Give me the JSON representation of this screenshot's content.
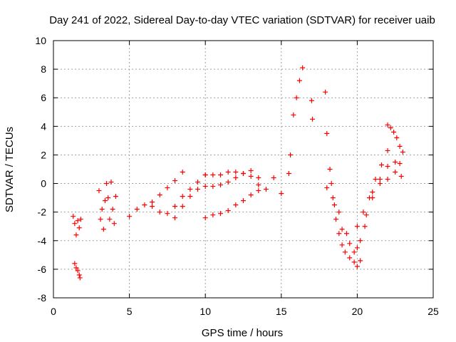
{
  "chart_data": {
    "type": "scatter",
    "title": "Day 241 of 2022, Sidereal Day-to-day VTEC variation (SDTVAR) for receiver uaib",
    "xlabel": "GPS time / hours",
    "ylabel": "SDTVAR / TECUs",
    "xlim": [
      0,
      25
    ],
    "ylim": [
      -8,
      10
    ],
    "xticks": [
      "0",
      "5",
      "10",
      "15",
      "20",
      "25"
    ],
    "yticks": [
      "-8",
      "-6",
      "-4",
      "-2",
      "0",
      "2",
      "4",
      "6",
      "8",
      "10"
    ],
    "grid": true,
    "marker": "+",
    "color": "#ff0000",
    "series": [
      {
        "name": "s1",
        "x": [
          1.3,
          1.4,
          1.5,
          1.6,
          1.7,
          1.8
        ],
        "y": [
          -2.3,
          -2.8,
          -3.6,
          -2.6,
          -3.1,
          -2.5
        ]
      },
      {
        "name": "s2",
        "x": [
          1.4,
          1.5,
          1.6,
          1.7,
          1.75
        ],
        "y": [
          -5.6,
          -5.9,
          -6.1,
          -6.4,
          -6.6
        ]
      },
      {
        "name": "s3",
        "x": [
          3.0,
          3.1,
          3.2,
          3.3,
          3.4
        ],
        "y": [
          -0.5,
          -2.5,
          -1.8,
          -3.2,
          -1.2
        ]
      },
      {
        "name": "s4",
        "x": [
          3.5,
          3.6,
          3.7,
          3.8,
          3.9,
          4.0,
          4.1
        ],
        "y": [
          0.0,
          -1.0,
          -2.5,
          0.1,
          -1.8,
          -2.8,
          -0.9
        ]
      },
      {
        "name": "s5",
        "x": [
          5.0,
          5.5,
          6.0,
          6.5,
          7.0,
          7.5,
          8.0,
          8.5
        ],
        "y": [
          -2.3,
          -1.8,
          -1.5,
          -1.3,
          -0.8,
          -0.3,
          0.2,
          0.8
        ]
      },
      {
        "name": "s6",
        "x": [
          6.5,
          7.0,
          7.5,
          8.0,
          8.5,
          9.0,
          9.5,
          10.0
        ],
        "y": [
          -1.6,
          -2.0,
          -2.1,
          -1.6,
          -0.9,
          -0.4,
          0.1,
          0.6
        ]
      },
      {
        "name": "s7",
        "x": [
          8.0,
          8.5,
          9.0,
          9.5,
          10.0,
          10.5,
          11.0,
          11.5,
          12.0,
          12.5,
          13.0
        ],
        "y": [
          -2.4,
          -1.6,
          -0.9,
          -0.4,
          -0.2,
          -0.2,
          -0.1,
          0.1,
          0.4,
          0.7,
          0.9
        ]
      },
      {
        "name": "s8",
        "x": [
          10.0,
          10.5,
          11.0,
          11.5,
          12.0,
          12.5,
          13.0,
          13.5
        ],
        "y": [
          0.6,
          0.6,
          0.6,
          0.8,
          0.8,
          0.7,
          0.5,
          0.4
        ]
      },
      {
        "name": "s9",
        "x": [
          10.0,
          10.5,
          11.0,
          11.5,
          12.0,
          12.5,
          13.0,
          13.5
        ],
        "y": [
          -2.4,
          -2.2,
          -2.1,
          -1.9,
          -1.5,
          -1.2,
          -0.8,
          -0.5
        ]
      },
      {
        "name": "s10",
        "x": [
          13.5,
          14.0,
          14.5,
          15.0,
          15.5
        ],
        "y": [
          -0.1,
          -0.4,
          0.4,
          -0.7,
          0.7
        ]
      },
      {
        "name": "s11",
        "x": [
          15.6,
          15.8,
          16.0,
          16.2,
          16.4
        ],
        "y": [
          2.0,
          4.8,
          6.0,
          7.2,
          8.1
        ]
      },
      {
        "name": "s12",
        "x": [
          17.0,
          17.05
        ],
        "y": [
          5.8,
          4.5
        ]
      },
      {
        "name": "s13",
        "x": [
          17.9,
          18.0,
          18.2,
          18.4,
          18.6,
          18.8,
          19.0,
          19.2,
          19.5,
          19.8,
          20.0,
          20.2
        ],
        "y": [
          6.4,
          3.5,
          1.0,
          -1.0,
          -2.5,
          -3.5,
          -4.3,
          -4.8,
          -5.2,
          -5.5,
          -5.8,
          -5.4
        ]
      },
      {
        "name": "s14",
        "x": [
          18.0,
          18.5,
          19.0,
          19.5,
          20.0,
          20.5,
          21.0,
          21.5,
          22.0,
          22.5,
          22.8
        ],
        "y": [
          -0.3,
          -1.5,
          -3.2,
          -4.2,
          -4.5,
          -3.0,
          -1.0,
          0.3,
          1.2,
          1.5,
          1.4
        ]
      },
      {
        "name": "s15",
        "x": [
          18.3,
          18.8,
          19.3,
          19.8,
          20.2,
          20.6,
          21.0,
          21.5,
          22.0,
          22.5,
          22.9
        ],
        "y": [
          0.0,
          -2.0,
          -3.5,
          -4.8,
          -4.0,
          -2.2,
          -0.6,
          0.0,
          0.3,
          0.8,
          0.5
        ]
      },
      {
        "name": "s16",
        "x": [
          20.0,
          20.4,
          20.8,
          21.2,
          21.6,
          22.0
        ],
        "y": [
          -3.0,
          -2.0,
          -1.0,
          0.3,
          1.3,
          2.3
        ]
      },
      {
        "name": "s17",
        "x": [
          22.0,
          22.2,
          22.4,
          22.6,
          22.8,
          23.0
        ],
        "y": [
          4.1,
          3.9,
          3.6,
          3.2,
          2.6,
          2.2
        ]
      }
    ]
  }
}
